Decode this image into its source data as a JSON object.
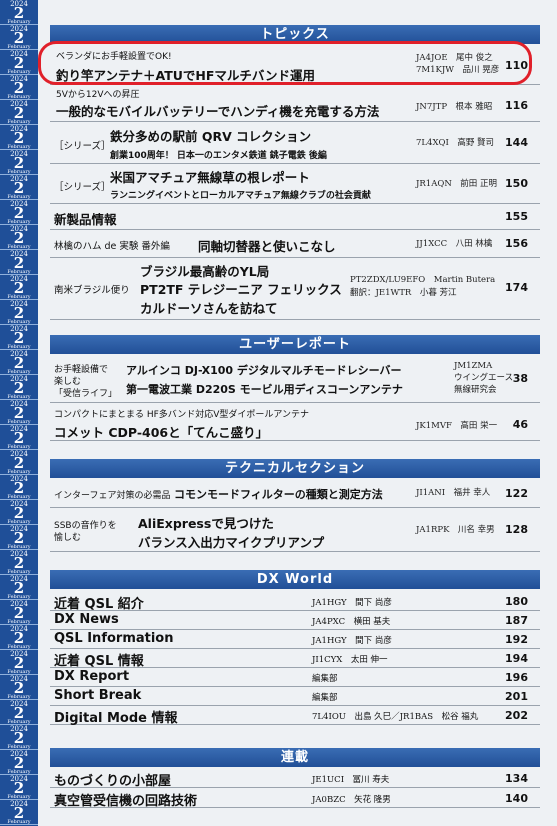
{
  "tab": {
    "year": "2024",
    "month": "2",
    "month_name": "February"
  },
  "sections": {
    "topics": "トピックス",
    "user_report": "ユーザーレポート",
    "technical": "テクニカルセクション",
    "dx": "DX World",
    "serial": "連載"
  },
  "topics": [
    {
      "sub": "ベランダにお手軽設置でOK!",
      "title": "釣り竿アンテナ＋ATUでHFマルチバンド運用",
      "call1": "JA4JOE　尾中 俊之",
      "call2": "7M1KJW　品川 晃彦",
      "page": "110"
    },
    {
      "sub": "5Vから12Vへの昇圧",
      "title": "一般的なモバイルバッテリーでハンディ機を充電する方法",
      "call1": "JN7JTP　根本 雅昭",
      "page": "116"
    },
    {
      "prefix": "［シリーズ］",
      "title": "鉄分多めの駅前 QRV コレクション",
      "sub": "創業100周年！ 日本一のエンタメ鉄道 銚子電鉄 後編",
      "call1": "7L4XQI　高野 賢司",
      "page": "144"
    },
    {
      "prefix": "［シリーズ］",
      "title": "米国アマチュア無線草の根レポート",
      "sub": "ランニングイベントとローカルアマチュア無線クラブの社会貢献",
      "call1": "JR1AQN　前田 正明",
      "page": "150"
    },
    {
      "title": "新製品情報",
      "page": "155"
    },
    {
      "prefix": "林檎のハム de 実験 番外編",
      "title": "同軸切替器と使いこなし",
      "call1": "JJ1XCC　八田 林檎",
      "page": "156"
    },
    {
      "prefix": "南米ブラジル便り",
      "title1": "ブラジル最高齢のYL局",
      "title2": "PT2TF テレジーニア フェリックス",
      "title3": "カルドーソさんを訪ねて",
      "call1": "PT2ZDX/LU9EFO　Martin Butera",
      "call2": "翻訳：JE1WTR　小暮 芳江",
      "page": "174"
    }
  ],
  "reports": [
    {
      "prefix1": "お手軽設備で",
      "prefix2": "楽しむ",
      "prefix3": "「受信ライフ」",
      "title1": "アルインコ DJ-X100 デジタルマルチモードレシーバー",
      "title2": "第一電波工業 D220S モービル用ディスコーンアンテナ",
      "call1": "JM1ZMA",
      "call2": "ウイングエース",
      "call3": "無線研究会",
      "page": "38"
    },
    {
      "sub": "コンパクトにまとまる HF多バンド対応V型ダイポールアンテナ",
      "title": "コメット CDP-406と「てんこ盛り」",
      "call1": "JK1MVF　高田 栄一",
      "page": "46"
    }
  ],
  "technical": [
    {
      "prefix": "インターフェア対策の必需品",
      "title": "コモンモードフィルターの種類と測定方法",
      "call1": "JI1ANI　福井 幸人",
      "page": "122"
    },
    {
      "prefix1": "SSBの音作りを",
      "prefix2": "愉しむ",
      "title1": "AliExpressで見つけた",
      "title2": "バランス入出力マイクプリアンプ",
      "call1": "JA1RPK　川名 幸男",
      "page": "128"
    }
  ],
  "dx": [
    {
      "title": "近着 QSL 紹介",
      "call": "JA1HGY　間下 尚彦",
      "page": "180"
    },
    {
      "title": "DX News",
      "call": "JA4PXC　横田 基夫",
      "page": "187"
    },
    {
      "title": "QSL Information",
      "call": "JA1HGY　間下 尚彦",
      "page": "192"
    },
    {
      "title": "近着 QSL 情報",
      "call": "JI1CYX　太田 伸一",
      "page": "194"
    },
    {
      "title": "DX Report",
      "call": "編集部",
      "page": "196"
    },
    {
      "title": "Short Break",
      "call": "編集部",
      "page": "201"
    },
    {
      "title": "Digital Mode 情報",
      "call": "7L4IOU　出島 久巳／JR1BAS　松谷 福丸",
      "page": "202"
    }
  ],
  "serial": [
    {
      "title": "ものづくりの小部屋",
      "call": "JE1UCI　冨川 寿夫",
      "page": "134"
    },
    {
      "title": "真空管受信機の回路技術",
      "call": "JA0BZC　矢花 隆男",
      "page": "140"
    }
  ],
  "colors": {
    "banner": "#2b5ca6",
    "strip": "#1f4f98",
    "highlight": "#e0202a"
  }
}
